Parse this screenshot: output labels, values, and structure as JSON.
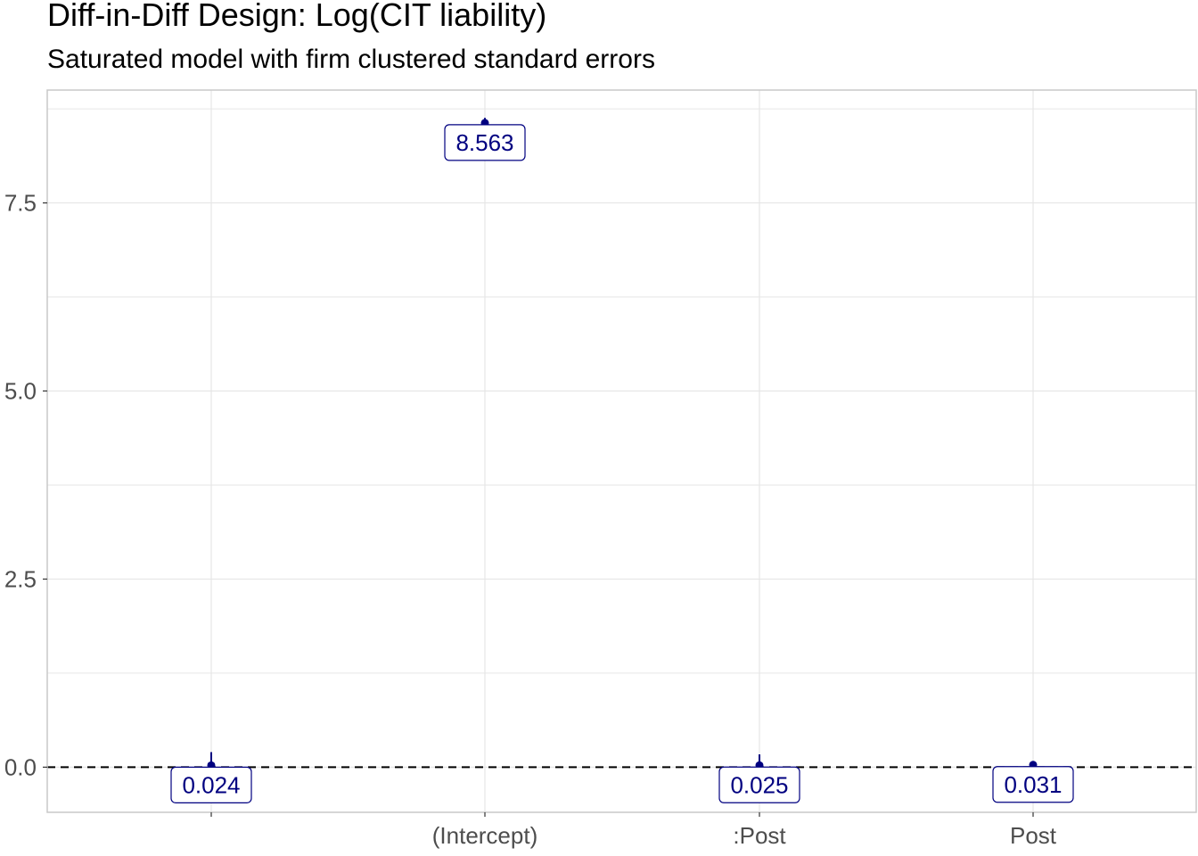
{
  "chart_data": {
    "type": "scatter",
    "title": "Diff-in-Diff Design: Log(CIT liability)",
    "subtitle": "Saturated model with firm clustered standard errors",
    "xlabel": "",
    "ylabel": "",
    "categories": [
      "",
      "(Intercept)",
      ":Post",
      "Post"
    ],
    "points": [
      {
        "term": "",
        "estimate": 0.024,
        "ci_low": 0.0,
        "ci_high": 0.2,
        "label": "0.024"
      },
      {
        "term": "(Intercept)",
        "estimate": 8.563,
        "ci_low": 8.5,
        "ci_high": 8.63,
        "label": "8.563"
      },
      {
        "term": ":Post",
        "estimate": 0.025,
        "ci_low": 0.0,
        "ci_high": 0.17,
        "label": "0.025"
      },
      {
        "term": "Post",
        "estimate": 0.031,
        "ci_low": 0.02,
        "ci_high": 0.06,
        "label": "0.031"
      }
    ],
    "y_ticks": [
      "0.0",
      "2.5",
      "5.0",
      "7.5"
    ],
    "y_tick_values": [
      0,
      2.5,
      5,
      7.5
    ],
    "ylim": [
      -0.6,
      9.0
    ],
    "reference_line": 0,
    "grid": true,
    "colors": {
      "point": "#000080",
      "label_text": "#000080",
      "label_border": "#000080",
      "grid": "#e6e6e6",
      "panel_border": "#c8c8c8",
      "reference": "#000000"
    }
  }
}
